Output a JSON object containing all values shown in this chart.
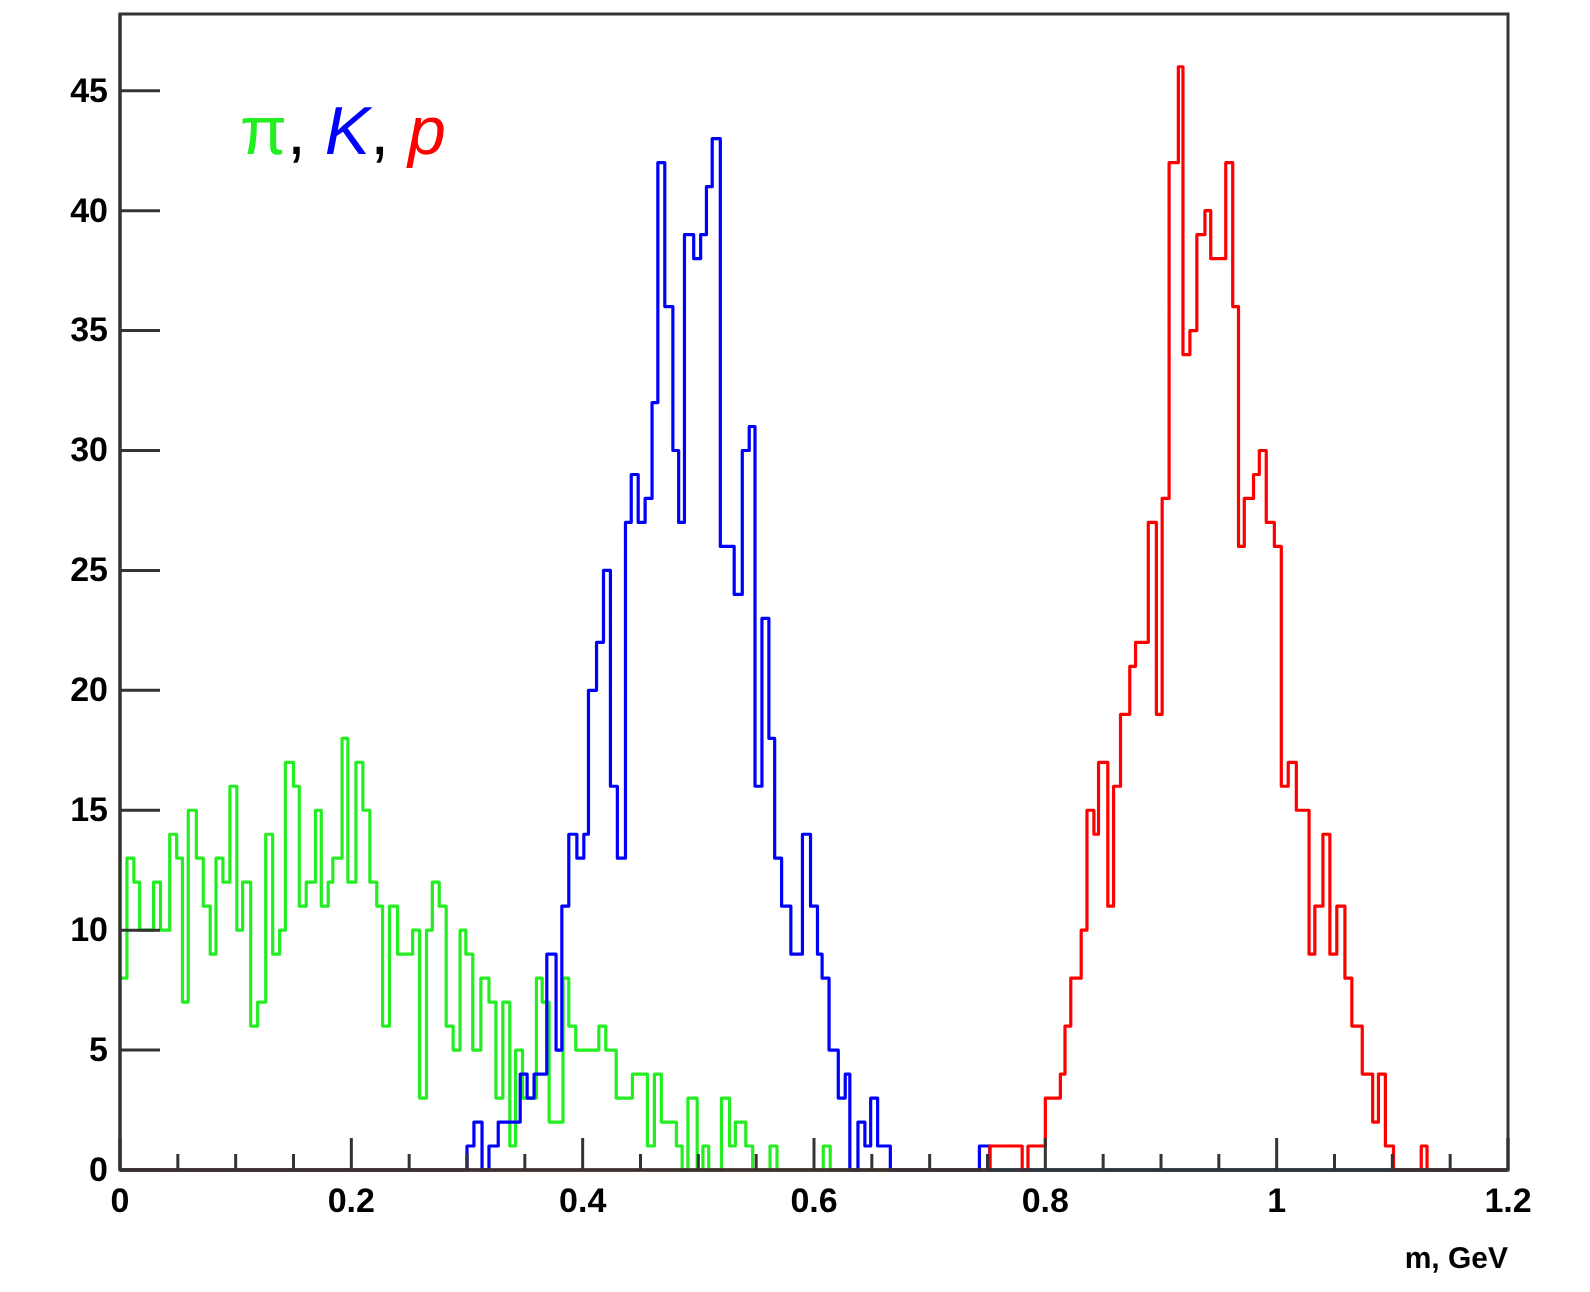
{
  "chart_data": {
    "type": "step",
    "xlabel": "m, GeV",
    "legend": "top left",
    "grid": false,
    "annotations": [
      ",",
      ","
    ],
    "xlim": [
      0,
      1.2
    ],
    "ylim": [
      0,
      48.2
    ],
    "xticks": [
      0,
      {
        "value": 0.05,
        "label": null
      },
      {
        "value": 0.1,
        "label": null
      },
      {
        "value": 0.15,
        "label": null
      },
      0.2,
      {
        "value": 0.25,
        "label": null
      },
      {
        "value": 0.3,
        "label": null
      },
      {
        "value": 0.35,
        "label": null
      },
      0.4,
      {
        "value": 0.45,
        "label": null
      },
      {
        "value": 0.5,
        "label": null
      },
      {
        "value": 0.55,
        "label": null
      },
      0.6,
      {
        "value": 0.65,
        "label": null
      },
      {
        "value": 0.7,
        "label": null
      },
      {
        "value": 0.75,
        "label": null
      },
      0.8,
      {
        "value": 0.85,
        "label": null
      },
      {
        "value": 0.9,
        "label": null
      },
      {
        "value": 0.95,
        "label": null
      },
      1,
      {
        "value": 1.05,
        "label": null
      },
      {
        "value": 1.1,
        "label": null
      },
      {
        "value": 1.15,
        "label": null
      },
      1.2
    ],
    "yticks": [
      0,
      5,
      10,
      15,
      20,
      25,
      30,
      35,
      40,
      45
    ],
    "series": [
      {
        "name": "π",
        "color": "#22ee22",
        "x": [
          0,
          0.006,
          0.012,
          0.017,
          0.029,
          0.035,
          0.043,
          0.049,
          0.054,
          0.059,
          0.066,
          0.072,
          0.078,
          0.083,
          0.089,
          0.095,
          0.101,
          0.106,
          0.113,
          0.119,
          0.126,
          0.132,
          0.138,
          0.143,
          0.15,
          0.155,
          0.161,
          0.169,
          0.174,
          0.18,
          0.184,
          0.192,
          0.197,
          0.204,
          0.21,
          0.216,
          0.222,
          0.227,
          0.233,
          0.24,
          0.253,
          0.259,
          0.265,
          0.27,
          0.276,
          0.282,
          0.288,
          0.294,
          0.299,
          0.305,
          0.312,
          0.319,
          0.325,
          0.331,
          0.337,
          0.342,
          0.348,
          0.354,
          0.36,
          0.365,
          0.371,
          0.383,
          0.388,
          0.394,
          0.403,
          0.414,
          0.42,
          0.429,
          0.443,
          0.456,
          0.462,
          0.468,
          0.481,
          0.486,
          0.491,
          0.499,
          0.504,
          0.509,
          0.52,
          0.527,
          0.532,
          0.541,
          0.547,
          0.562,
          0.568,
          0.608,
          0.614,
          1.2
        ],
        "values": [
          8,
          13,
          12,
          10,
          12,
          10,
          14,
          13,
          7,
          15,
          13,
          11,
          9,
          13,
          12,
          16,
          10,
          12,
          6,
          7,
          14,
          9,
          10,
          17,
          16,
          11,
          12,
          15,
          11,
          12,
          13,
          18,
          12,
          17,
          15,
          12,
          11,
          6,
          11,
          9,
          10,
          3,
          10,
          12,
          11,
          6,
          5,
          10,
          9,
          5,
          8,
          7,
          3,
          7,
          1,
          5,
          3,
          3,
          8,
          7,
          2,
          8,
          6,
          5,
          5,
          6,
          5,
          3,
          4,
          1,
          4,
          2,
          1,
          0,
          3,
          0,
          1,
          0,
          3,
          1,
          2,
          1,
          0,
          1,
          0,
          1,
          0,
          0
        ]
      },
      {
        "name": "K",
        "color": "#0000ff",
        "x": [
          0,
          0.3,
          0.306,
          0.313,
          0.319,
          0.327,
          0.346,
          0.352,
          0.358,
          0.369,
          0.377,
          0.382,
          0.388,
          0.395,
          0.401,
          0.405,
          0.412,
          0.418,
          0.424,
          0.43,
          0.437,
          0.442,
          0.448,
          0.454,
          0.46,
          0.465,
          0.471,
          0.478,
          0.483,
          0.488,
          0.496,
          0.502,
          0.507,
          0.512,
          0.519,
          0.531,
          0.538,
          0.544,
          0.549,
          0.555,
          0.561,
          0.566,
          0.572,
          0.58,
          0.59,
          0.597,
          0.603,
          0.607,
          0.613,
          0.621,
          0.627,
          0.631,
          0.638,
          0.644,
          0.649,
          0.655,
          0.666,
          0.743,
          0.752,
          1.2
        ],
        "values": [
          0,
          1,
          2,
          0,
          1,
          2,
          4,
          3,
          4,
          9,
          5,
          11,
          14,
          13,
          14,
          20,
          22,
          25,
          16,
          13,
          27,
          29,
          27,
          28,
          32,
          42,
          36,
          30,
          27,
          39,
          38,
          39,
          41,
          43,
          26,
          24,
          30,
          31,
          16,
          23,
          18,
          13,
          11,
          9,
          14,
          11,
          9,
          8,
          5,
          3,
          4,
          0,
          2,
          1,
          3,
          1,
          0,
          1,
          0,
          0
        ]
      },
      {
        "name": "p",
        "color": "#ff0000",
        "x": [
          0,
          0.752,
          0.78,
          0.785,
          0.8,
          0.813,
          0.817,
          0.822,
          0.831,
          0.836,
          0.842,
          0.846,
          0.854,
          0.859,
          0.865,
          0.873,
          0.878,
          0.889,
          0.896,
          0.901,
          0.907,
          0.915,
          0.919,
          0.925,
          0.931,
          0.938,
          0.943,
          0.956,
          0.962,
          0.967,
          0.972,
          0.98,
          0.985,
          0.991,
          0.998,
          1.004,
          1.01,
          1.017,
          1.028,
          1.033,
          1.04,
          1.046,
          1.052,
          1.059,
          1.065,
          1.074,
          1.083,
          1.088,
          1.094,
          1.101,
          1.125,
          1.13,
          1.2
        ],
        "values": [
          0,
          1,
          0,
          1,
          3,
          4,
          6,
          8,
          10,
          15,
          14,
          17,
          11,
          16,
          19,
          21,
          22,
          27,
          19,
          28,
          42,
          46,
          34,
          35,
          39,
          40,
          38,
          42,
          36,
          26,
          28,
          29,
          30,
          27,
          26,
          16,
          17,
          15,
          9,
          11,
          14,
          9,
          11,
          8,
          6,
          4,
          2,
          4,
          1,
          0,
          1,
          0,
          0
        ]
      }
    ]
  }
}
